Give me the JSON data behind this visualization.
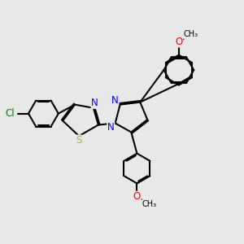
{
  "bg_color": "#e8e8e8",
  "bond_color": "#000000",
  "bond_width": 1.5,
  "atom_colors": {
    "N": "#0000ff",
    "S": "#b8b800",
    "O": "#ff0000",
    "Cl": "#008000",
    "C": "#000000"
  },
  "font_size": 8.5,
  "dbo": 0.055
}
